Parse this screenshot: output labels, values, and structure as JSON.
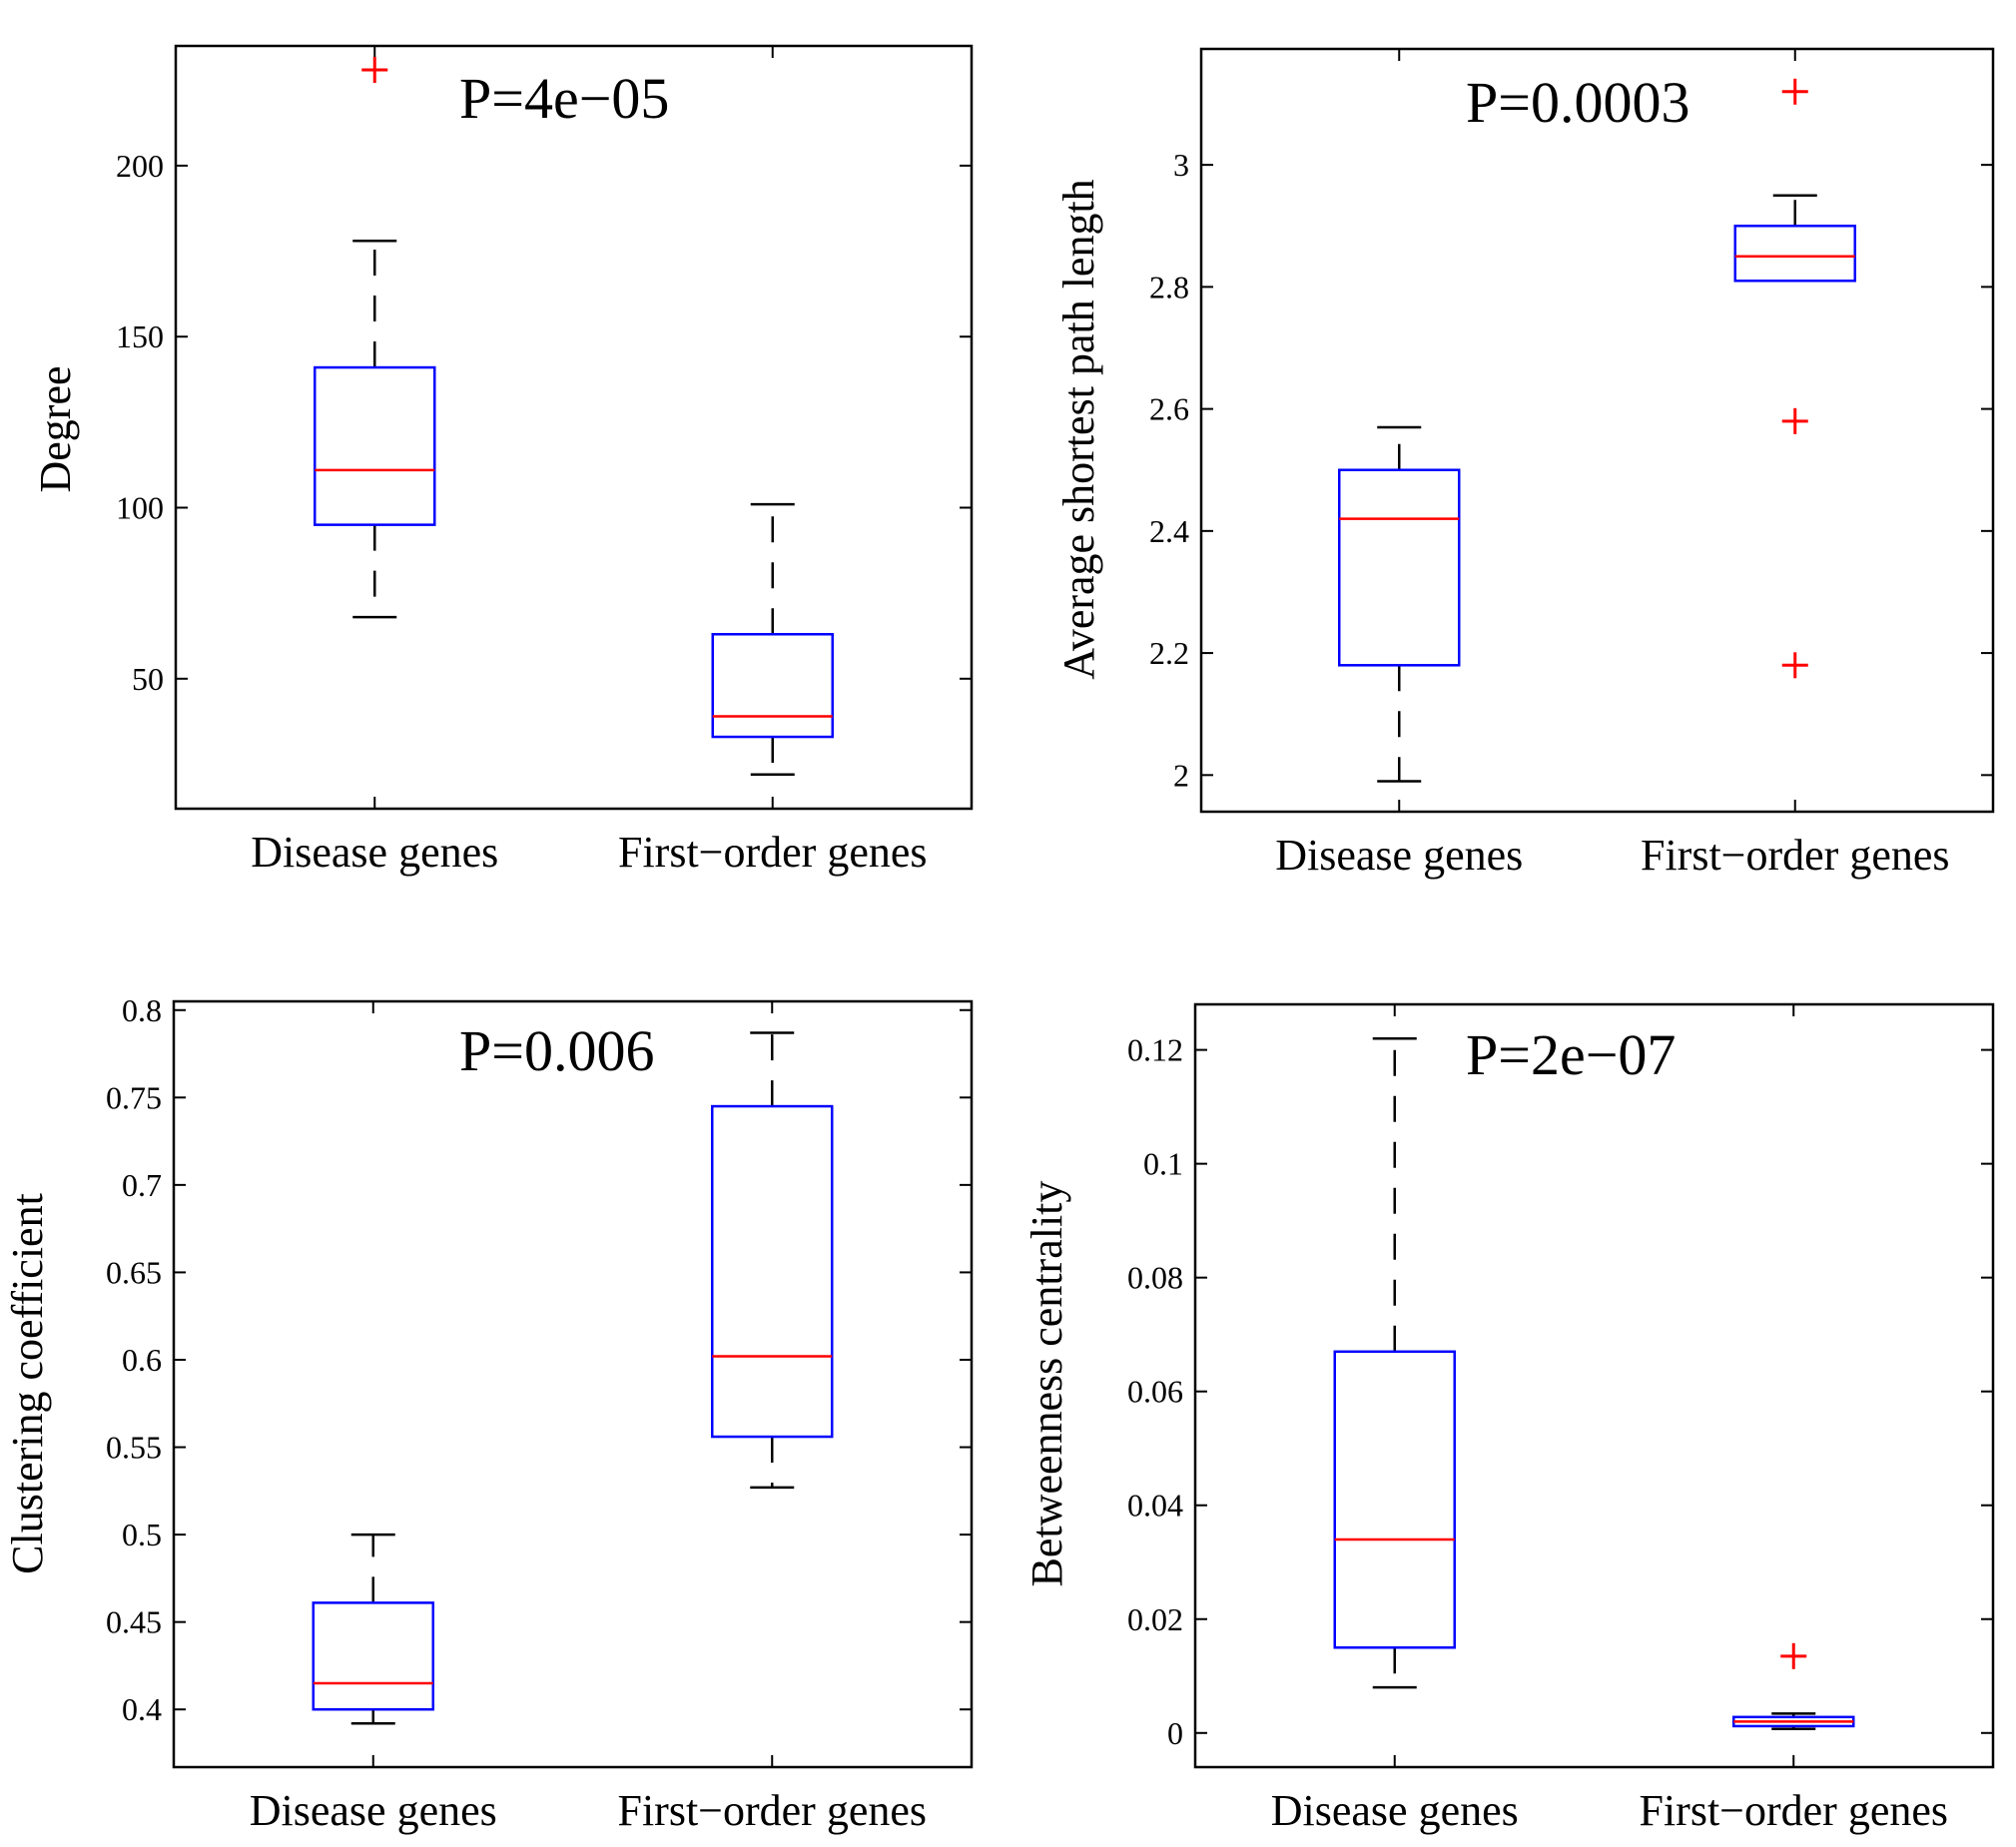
{
  "colors": {
    "box": "#0000ff",
    "median": "#ff0000",
    "outlier": "#ff0000",
    "whisker": "#000000",
    "frame": "#000000"
  },
  "chart_data": [
    {
      "type": "box",
      "title": "",
      "annotation": "P=4e−05",
      "xlabel": "",
      "ylabel": "Degree",
      "categories": [
        "Disease genes",
        "First−order genes"
      ],
      "ylim": [
        12,
        235
      ],
      "yticks": [
        50,
        100,
        150,
        200
      ],
      "ytick_labels": [
        "50",
        "100",
        "150",
        "200"
      ],
      "boxes": [
        {
          "whisker_low": 68,
          "q1": 95,
          "median": 111,
          "q3": 141,
          "whisker_high": 178,
          "outliers": [
            228
          ]
        },
        {
          "whisker_low": 22,
          "q1": 33,
          "median": 39,
          "q3": 63,
          "whisker_high": 101,
          "outliers": []
        }
      ]
    },
    {
      "type": "box",
      "title": "",
      "annotation": "P=0.0003",
      "xlabel": "",
      "ylabel": "Average shortest path length",
      "categories": [
        "Disease genes",
        "First−order genes"
      ],
      "ylim": [
        1.94,
        3.19
      ],
      "yticks": [
        2,
        2.2,
        2.4,
        2.6,
        2.8,
        3
      ],
      "ytick_labels": [
        "2",
        "2.2",
        "2.4",
        "2.6",
        "2.8",
        "3"
      ],
      "boxes": [
        {
          "whisker_low": 1.99,
          "q1": 2.18,
          "median": 2.42,
          "q3": 2.5,
          "whisker_high": 2.57,
          "outliers": []
        },
        {
          "whisker_low": 2.81,
          "q1": 2.81,
          "median": 2.85,
          "q3": 2.9,
          "whisker_high": 2.95,
          "outliers": [
            3.12,
            2.58,
            2.18
          ]
        }
      ]
    },
    {
      "type": "box",
      "title": "",
      "annotation": "P=0.006",
      "xlabel": "",
      "ylabel": "Clustering coefficient",
      "categories": [
        "Disease genes",
        "First−order genes"
      ],
      "ylim": [
        0.367,
        0.805
      ],
      "yticks": [
        0.4,
        0.45,
        0.5,
        0.55,
        0.6,
        0.65,
        0.7,
        0.75,
        0.8
      ],
      "ytick_labels": [
        "0.4",
        "0.45",
        "0.5",
        "0.55",
        "0.6",
        "0.65",
        "0.7",
        "0.75",
        "0.8"
      ],
      "boxes": [
        {
          "whisker_low": 0.392,
          "q1": 0.4,
          "median": 0.415,
          "q3": 0.461,
          "whisker_high": 0.5,
          "outliers": []
        },
        {
          "whisker_low": 0.527,
          "q1": 0.556,
          "median": 0.602,
          "q3": 0.745,
          "whisker_high": 0.787,
          "outliers": []
        }
      ]
    },
    {
      "type": "box",
      "title": "",
      "annotation": "P=2e−07",
      "xlabel": "",
      "ylabel": "Betweenness centrality",
      "categories": [
        "Disease genes",
        "First−order genes"
      ],
      "ylim": [
        -0.006,
        0.128
      ],
      "yticks": [
        0,
        0.02,
        0.04,
        0.06,
        0.08,
        0.1,
        0.12
      ],
      "ytick_labels": [
        "0",
        "0.02",
        "0.04",
        "0.06",
        "0.08",
        "0.1",
        "0.12"
      ],
      "boxes": [
        {
          "whisker_low": 0.008,
          "q1": 0.015,
          "median": 0.034,
          "q3": 0.067,
          "whisker_high": 0.122,
          "outliers": []
        },
        {
          "whisker_low": 0.0007,
          "q1": 0.0012,
          "median": 0.002,
          "q3": 0.0028,
          "whisker_high": 0.0034,
          "outliers": [
            0.0135
          ]
        }
      ]
    }
  ]
}
